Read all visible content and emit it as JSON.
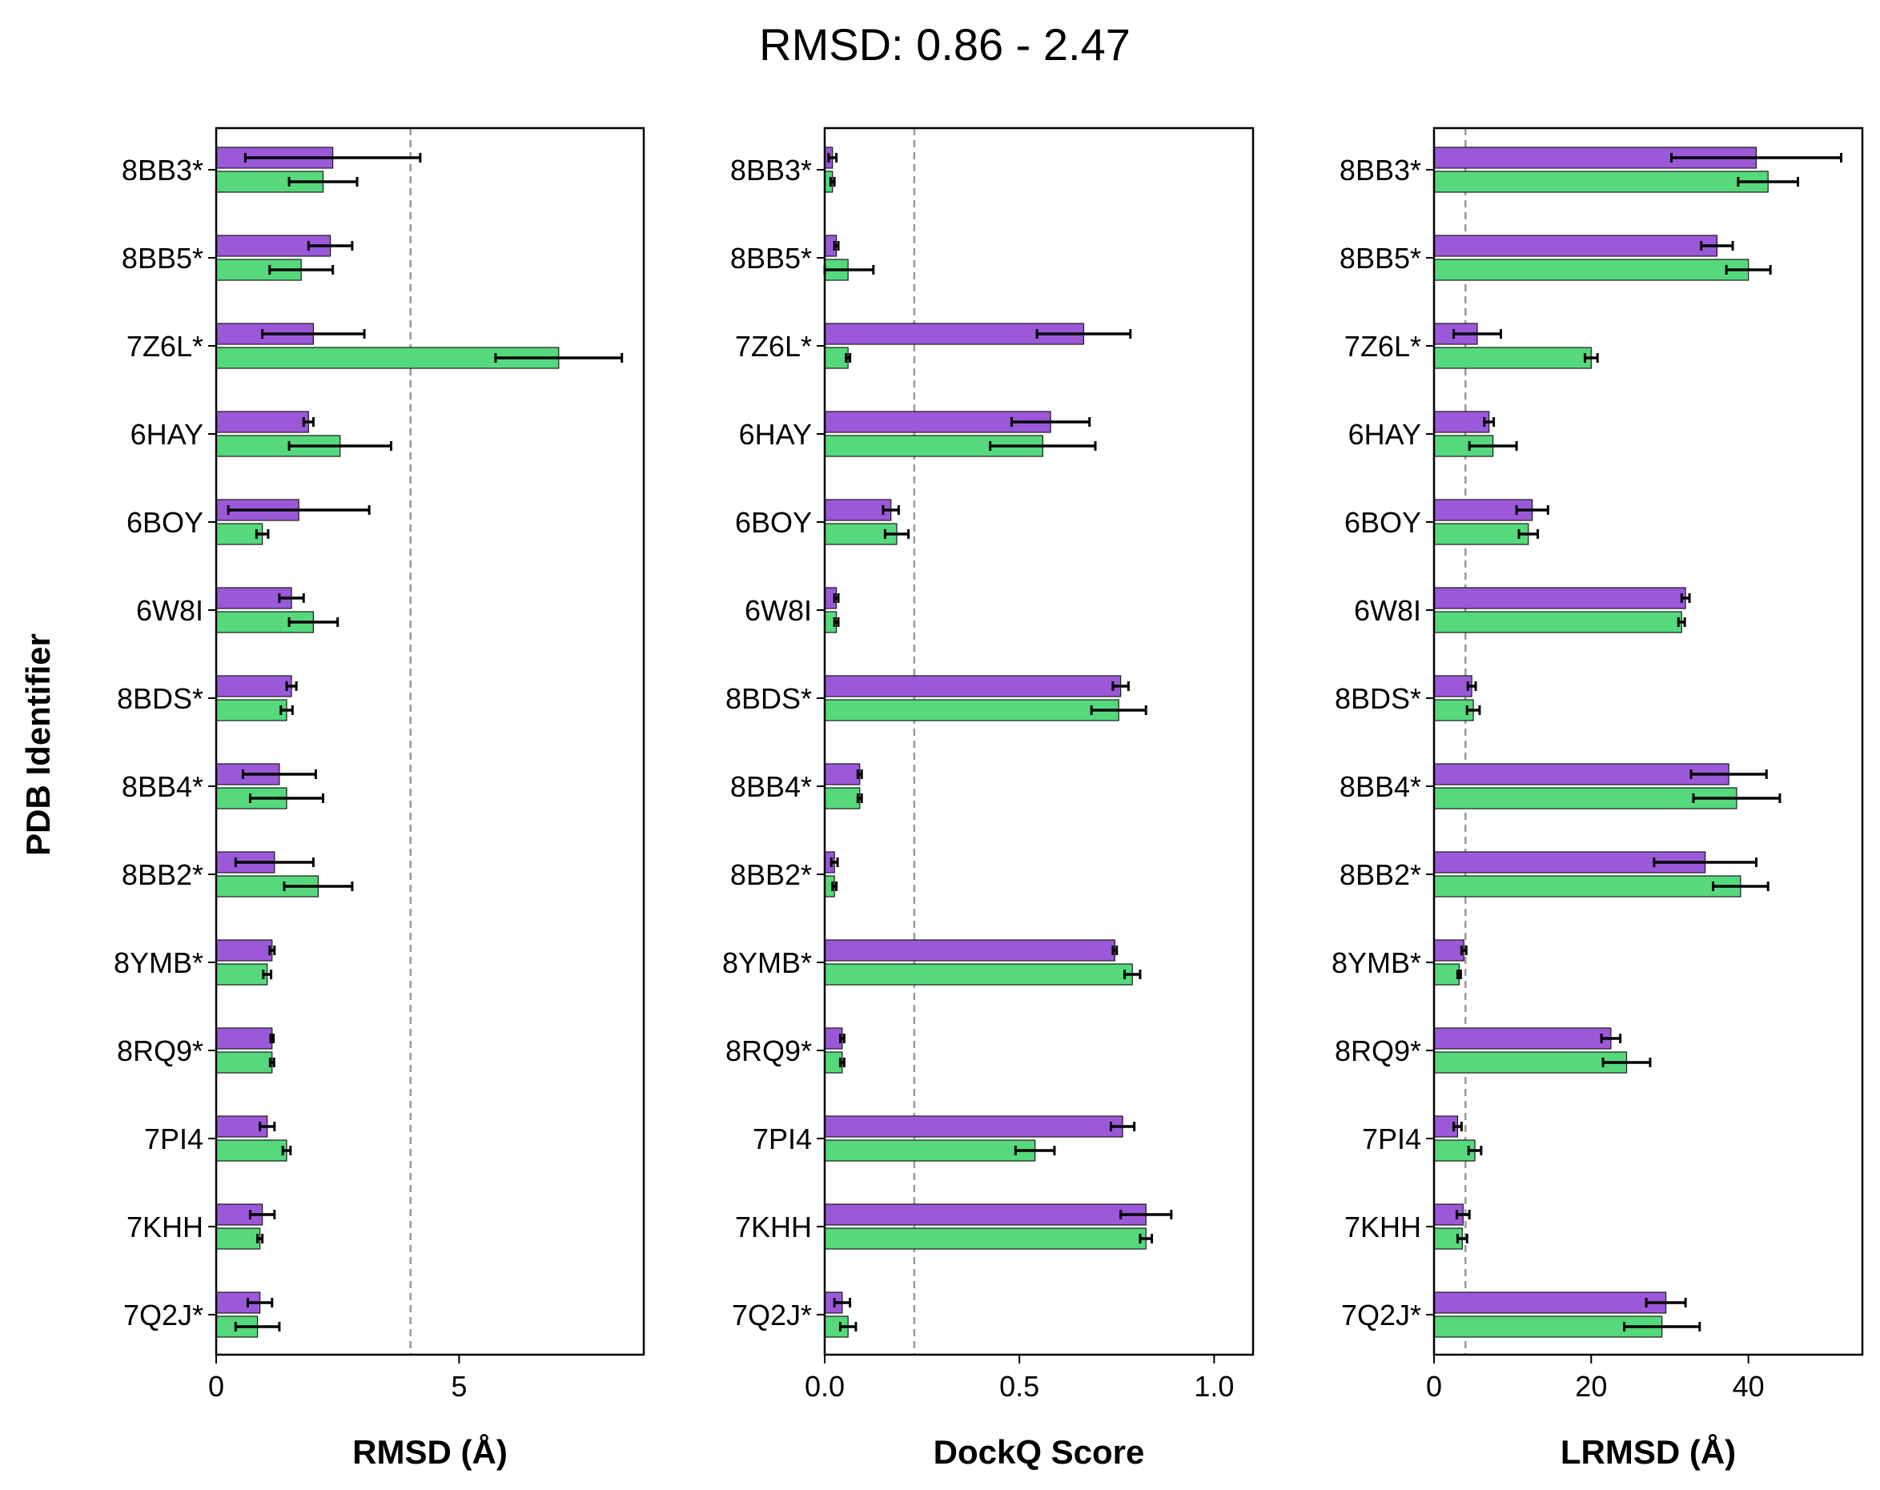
{
  "chart_data": {
    "type": "bar",
    "orientation": "horizontal",
    "title": "RMSD: 0.86 - 2.47",
    "ylabel": "PDB Identifier",
    "categories": [
      "8BB3*",
      "8BB5*",
      "7Z6L*",
      "6HAY",
      "6BOY",
      "6W8I",
      "8BDS*",
      "8BB4*",
      "8BB2*",
      "8YMB*",
      "8RQ9*",
      "7PI4",
      "7KHH",
      "7Q2J*"
    ],
    "series_colors": [
      "#9b59d9",
      "#55d97c"
    ],
    "panels": [
      {
        "xlabel": "RMSD (Å)",
        "xlim": [
          0,
          8.8
        ],
        "xticks": [
          0,
          5
        ],
        "xtick_labels": [
          "0",
          "5"
        ],
        "reference_line": 4.0,
        "series": [
          {
            "values": [
              2.4,
              2.35,
              2.0,
              1.9,
              1.7,
              1.55,
              1.55,
              1.3,
              1.2,
              1.15,
              1.15,
              1.05,
              0.95,
              0.9
            ],
            "errors": [
              1.8,
              0.45,
              1.05,
              0.1,
              1.45,
              0.25,
              0.1,
              0.75,
              0.8,
              0.05,
              0.03,
              0.15,
              0.25,
              0.25
            ]
          },
          {
            "values": [
              2.2,
              1.75,
              7.05,
              2.55,
              0.95,
              2.0,
              1.45,
              1.45,
              2.1,
              1.05,
              1.15,
              1.45,
              0.9,
              0.85
            ],
            "errors": [
              0.7,
              0.65,
              1.3,
              1.05,
              0.12,
              0.5,
              0.12,
              0.75,
              0.7,
              0.08,
              0.04,
              0.08,
              0.05,
              0.45
            ]
          }
        ]
      },
      {
        "xlabel": "DockQ Score",
        "xlim": [
          0,
          1.1
        ],
        "xticks": [
          0.0,
          0.5,
          1.0
        ],
        "xtick_labels": [
          "0.0",
          "0.5",
          "1.0"
        ],
        "reference_line": 0.23,
        "series": [
          {
            "values": [
              0.02,
              0.03,
              0.665,
              0.58,
              0.17,
              0.03,
              0.76,
              0.09,
              0.025,
              0.745,
              0.045,
              0.765,
              0.825,
              0.045
            ],
            "errors": [
              0.01,
              0.005,
              0.12,
              0.1,
              0.02,
              0.005,
              0.02,
              0.005,
              0.008,
              0.005,
              0.005,
              0.03,
              0.065,
              0.02
            ]
          },
          {
            "values": [
              0.02,
              0.06,
              0.06,
              0.56,
              0.185,
              0.03,
              0.755,
              0.09,
              0.025,
              0.79,
              0.045,
              0.54,
              0.825,
              0.06
            ],
            "errors": [
              0.005,
              0.065,
              0.005,
              0.135,
              0.03,
              0.005,
              0.07,
              0.005,
              0.005,
              0.02,
              0.005,
              0.05,
              0.015,
              0.02
            ]
          }
        ]
      },
      {
        "xlabel": "LRMSD (Å)",
        "xlim": [
          0,
          54.5
        ],
        "xticks": [
          0,
          20,
          40
        ],
        "xtick_labels": [
          "0",
          "20",
          "40"
        ],
        "reference_line": 4.0,
        "series": [
          {
            "values": [
              41.0,
              36.0,
              5.5,
              7.0,
              12.5,
              32.0,
              4.8,
              37.5,
              34.5,
              3.8,
              22.5,
              3.0,
              3.7,
              29.5
            ],
            "errors": [
              10.8,
              2.0,
              3.0,
              0.6,
              2.0,
              0.5,
              0.5,
              4.8,
              6.5,
              0.3,
              1.2,
              0.5,
              0.8,
              2.5
            ]
          },
          {
            "values": [
              42.5,
              40.0,
              20.0,
              7.5,
              12.0,
              31.5,
              5.0,
              38.5,
              39.0,
              3.2,
              24.5,
              5.2,
              3.6,
              29.0
            ],
            "errors": [
              3.8,
              2.8,
              0.8,
              3.0,
              1.2,
              0.4,
              0.8,
              5.5,
              3.5,
              0.2,
              3.0,
              0.8,
              0.6,
              4.8
            ]
          }
        ]
      }
    ]
  }
}
